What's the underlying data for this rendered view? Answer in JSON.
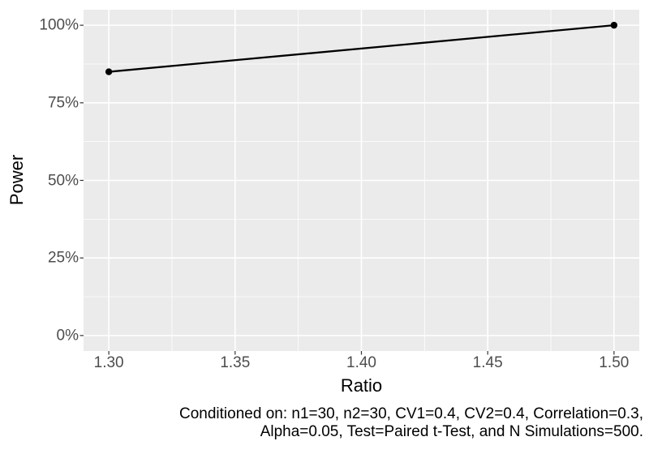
{
  "chart_data": {
    "type": "line",
    "title": "",
    "xlabel": "Ratio",
    "ylabel": "Power",
    "x": [
      1.3,
      1.5
    ],
    "series": [
      {
        "name": "Power",
        "values": [
          0.85,
          1.0
        ]
      }
    ],
    "x_ticks": [
      {
        "value": 1.3,
        "label": "1.30"
      },
      {
        "value": 1.35,
        "label": "1.35"
      },
      {
        "value": 1.4,
        "label": "1.40"
      },
      {
        "value": 1.45,
        "label": "1.45"
      },
      {
        "value": 1.5,
        "label": "1.50"
      }
    ],
    "y_ticks": [
      {
        "value": 0.0,
        "label": "0%"
      },
      {
        "value": 0.25,
        "label": "25%"
      },
      {
        "value": 0.5,
        "label": "50%"
      },
      {
        "value": 0.75,
        "label": "75%"
      },
      {
        "value": 1.0,
        "label": "100%"
      }
    ],
    "x_minor_ticks": [
      1.325,
      1.375,
      1.425,
      1.475
    ],
    "y_minor_ticks": [
      0.125,
      0.375,
      0.625,
      0.875
    ],
    "xlim": [
      1.29,
      1.51
    ],
    "ylim": [
      -0.05,
      1.05
    ],
    "grid": "major-and-minor",
    "legend": "none",
    "caption_lines": [
      "Conditioned on: n1=30, n2=30, CV1=0.4, CV2=0.4, Correlation=0.3,",
      "Alpha=0.05, Test=Paired t-Test, and N Simulations=500."
    ],
    "colors": {
      "figure_background": "#FFFFFF",
      "panel_background": "#EBEBEB",
      "gridline": "#FFFFFF",
      "line": "#000000",
      "point": "#000000",
      "tick_mark": "#333333",
      "tick_label": "#4D4D4D",
      "axis_title": "#000000",
      "caption_text": "#000000"
    }
  }
}
